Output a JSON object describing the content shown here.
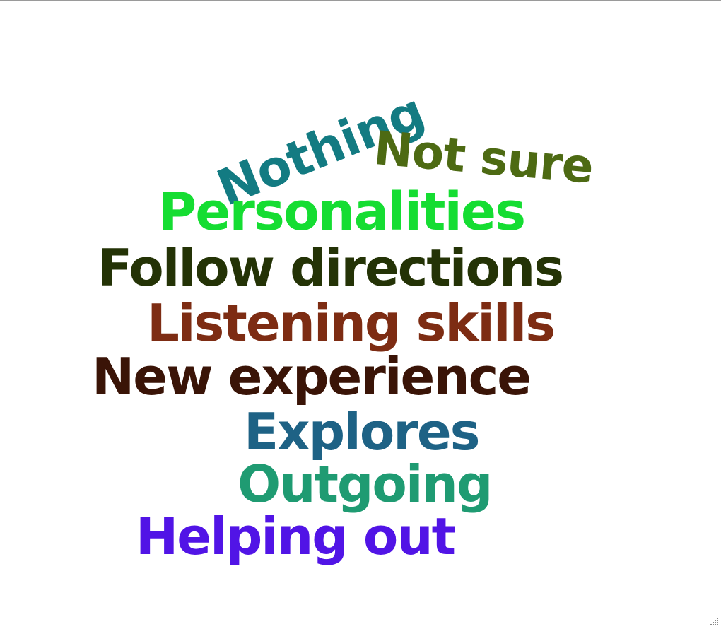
{
  "word_cloud": {
    "words": [
      {
        "id": "nothing",
        "text": "Nothing",
        "color": "#137b82"
      },
      {
        "id": "notsure",
        "text": "Not sure",
        "color": "#4d6a13"
      },
      {
        "id": "personalities",
        "text": "Personalities",
        "color": "#15dd32"
      },
      {
        "id": "follow",
        "text": "Follow directions",
        "color": "#243306"
      },
      {
        "id": "listening",
        "text": "Listening skills",
        "color": "#7d2c13"
      },
      {
        "id": "newexp",
        "text": "New experience",
        "color": "#3a1407"
      },
      {
        "id": "explores",
        "text": "Explores",
        "color": "#1e6285"
      },
      {
        "id": "outgoing",
        "text": "Outgoing",
        "color": "#1f9b72"
      },
      {
        "id": "helping",
        "text": "Helping out",
        "color": "#5114e6"
      }
    ]
  },
  "window": {
    "resize_grip_icon": "resize-grip-icon"
  }
}
